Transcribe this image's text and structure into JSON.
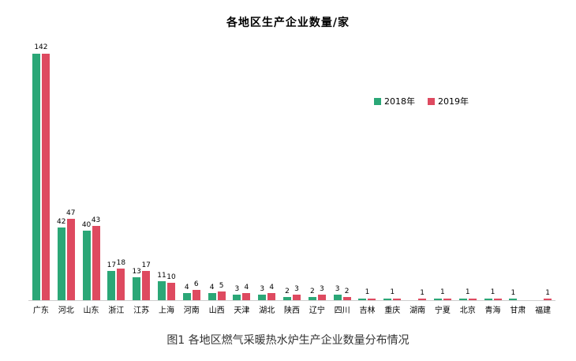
{
  "chart_data": {
    "type": "bar",
    "title": "各地区生产企业数量/家",
    "caption": "图1 各地区燃气采暖热水炉生产企业数量分布情况",
    "categories": [
      "广东",
      "河北",
      "山东",
      "浙江",
      "江苏",
      "上海",
      "河南",
      "山西",
      "天津",
      "湖北",
      "陕西",
      "辽宁",
      "四川",
      "吉林",
      "重庆",
      "湖南",
      "宁夏",
      "北京",
      "青海",
      "甘肃",
      "福建"
    ],
    "series": [
      {
        "name": "2018年",
        "color": "#2BA777",
        "values": [
          142,
          42,
          40,
          17,
          13,
          11,
          4,
          4,
          3,
          3,
          2,
          2,
          3,
          1,
          1,
          0,
          1,
          1,
          1,
          1,
          0
        ]
      },
      {
        "name": "2019年",
        "color": "#DE4A60",
        "values": [
          142,
          47,
          43,
          18,
          17,
          10,
          6,
          5,
          4,
          4,
          3,
          3,
          2,
          1,
          1,
          1,
          1,
          1,
          1,
          0,
          1
        ]
      }
    ],
    "ylim": [
      0,
      150
    ],
    "grid": false,
    "legend_position": "center-right",
    "data_labels": true,
    "xlabel": "",
    "ylabel": ""
  }
}
